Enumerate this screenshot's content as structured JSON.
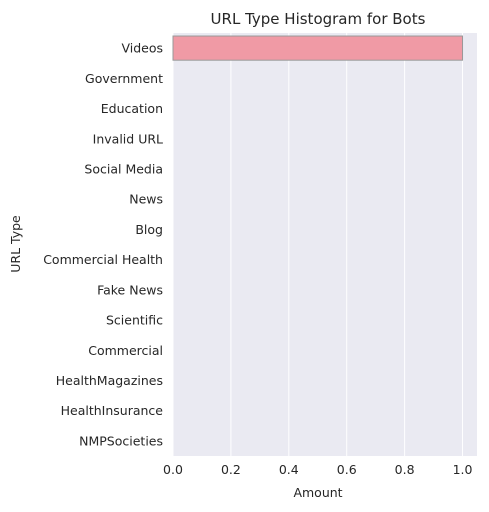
{
  "chart_data": {
    "type": "bar",
    "orientation": "horizontal",
    "title": "URL Type Histogram for Bots",
    "xlabel": "Amount",
    "ylabel": "URL Type",
    "categories": [
      "Videos",
      "Government",
      "Education",
      "Invalid URL",
      "Social Media",
      "News",
      "Blog",
      "Commercial Health",
      "Fake News",
      "Scientific",
      "Commercial",
      "HealthMagazines",
      "HealthInsurance",
      "NMPSocieties"
    ],
    "values": [
      1,
      0,
      0,
      0,
      0,
      0,
      0,
      0,
      0,
      0,
      0,
      0,
      0,
      0
    ],
    "xlim": [
      0,
      1.05
    ],
    "xticks": [
      0.0,
      0.2,
      0.4,
      0.6,
      0.8,
      1.0
    ],
    "xtick_labels": [
      "0.0",
      "0.2",
      "0.4",
      "0.6",
      "0.8",
      "1.0"
    ],
    "grid": true,
    "legend": "none",
    "colors": {
      "background": "#eaeaf2",
      "grid": "#ffffff",
      "bar": "#f09aa5",
      "bar_edge": "#999999",
      "text": "#262626"
    }
  }
}
